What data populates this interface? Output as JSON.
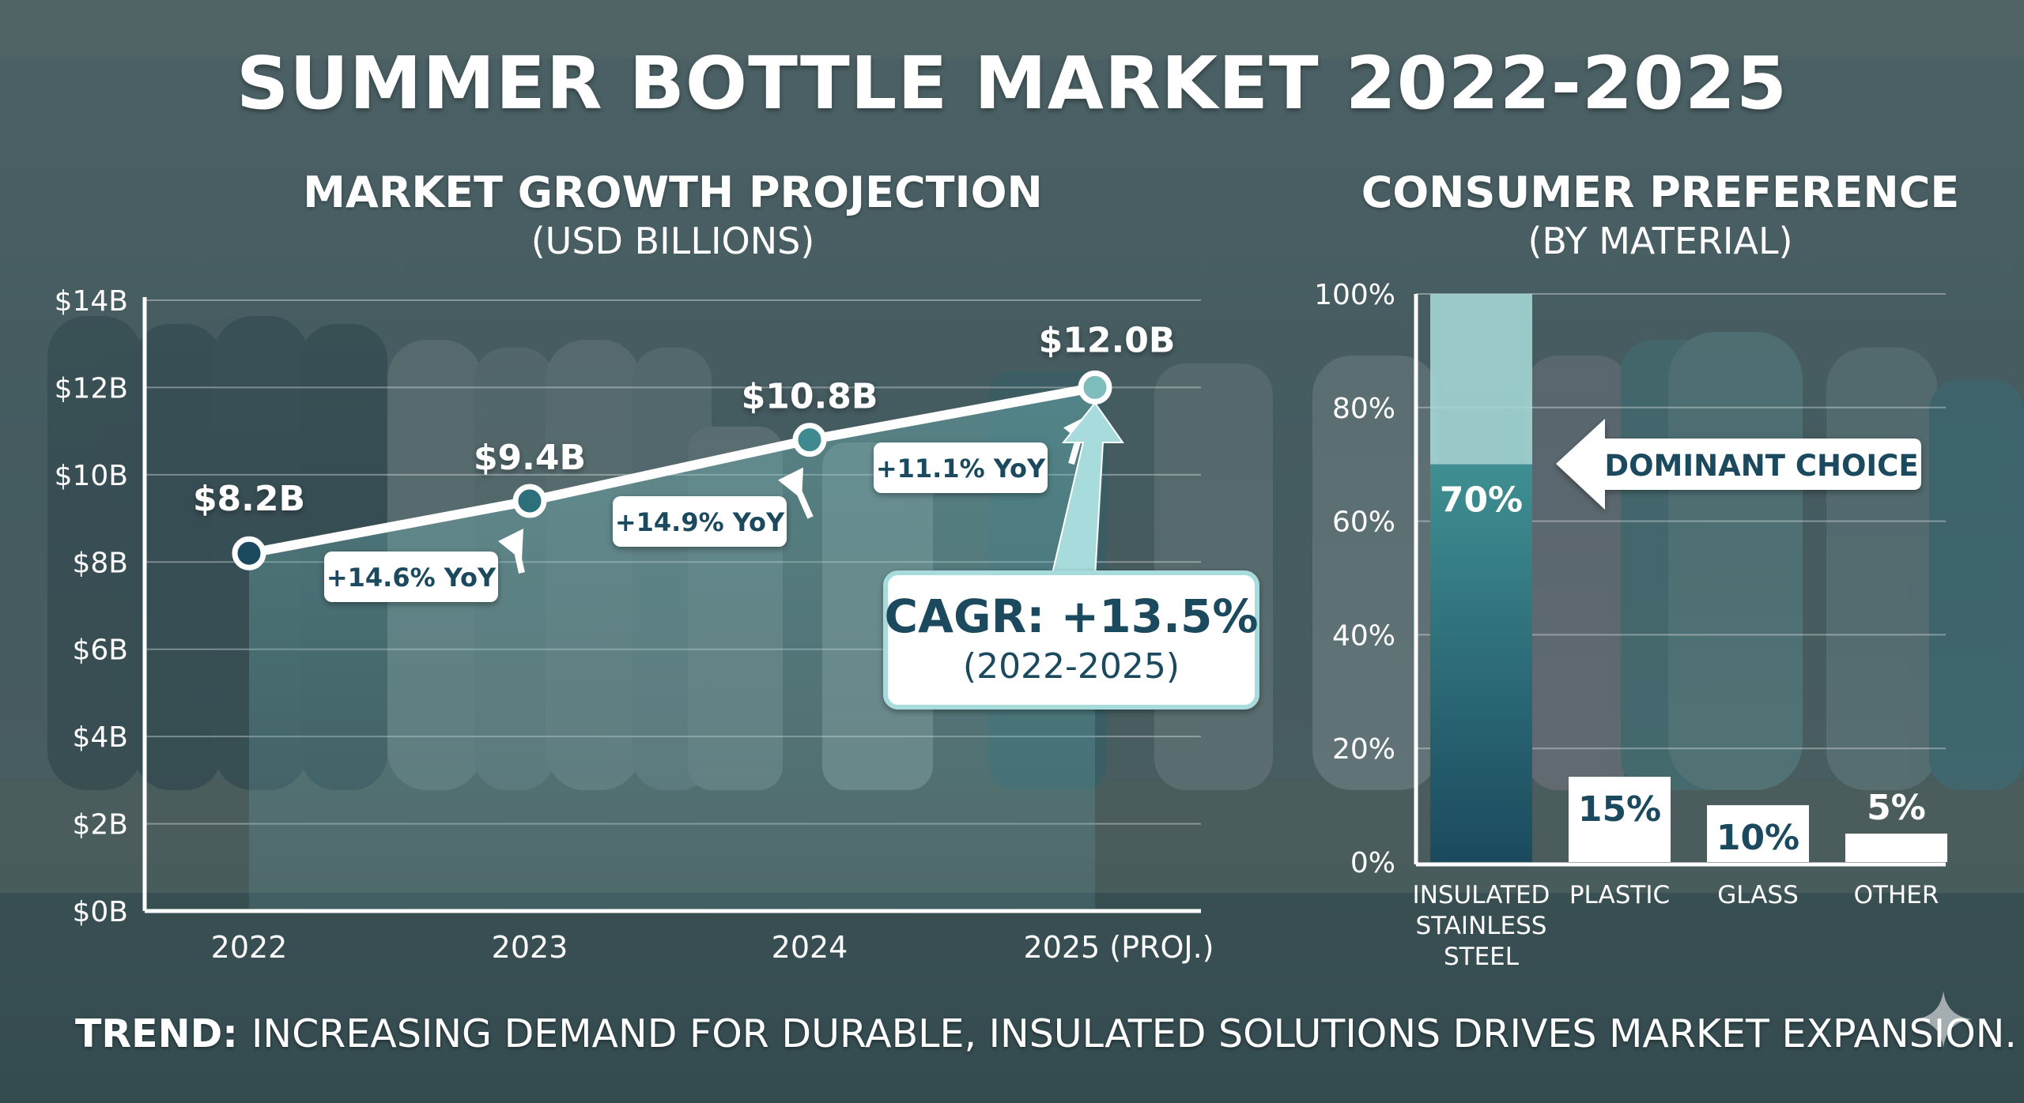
{
  "title": "SUMMER BOTTLE MARKET 2022-2025",
  "colors": {
    "accent_dark": "#1b4a5e",
    "accent_teal": "#3e8a90",
    "accent_light": "#a8dcdc",
    "text": "#ffffff"
  },
  "trend": {
    "label": "TREND:",
    "text": "INCREASING DEMAND FOR DURABLE, INSULATED SOLUTIONS DRIVES MARKET EXPANSION."
  },
  "chart_data": [
    {
      "type": "line",
      "title": "MARKET GROWTH PROJECTION",
      "subtitle": "(USD BILLIONS)",
      "categories": [
        "2022",
        "2023",
        "2024",
        "2025 (PROJ.)"
      ],
      "values": [
        8.2,
        9.4,
        10.8,
        12.0
      ],
      "data_labels": [
        "$8.2B",
        "$9.4B",
        "$10.8B",
        "$12.0B"
      ],
      "yoy_labels": [
        "+14.6% YoY",
        "+14.9% YoY",
        "+11.1% YoY"
      ],
      "yticks": [
        "$0B",
        "$2B",
        "$4B",
        "$6B",
        "$8B",
        "$10B",
        "$12B",
        "$14B"
      ],
      "ylim": [
        0,
        14
      ],
      "grid": true,
      "annotation": {
        "title": "CAGR: +13.5%",
        "subtitle": "(2022-2025)"
      }
    },
    {
      "type": "bar",
      "title": "CONSUMER PREFERENCE",
      "subtitle": "(BY MATERIAL)",
      "categories": [
        "INSULATED STAINLESS STEEL",
        "PLASTIC",
        "GLASS",
        "OTHER"
      ],
      "values": [
        70,
        15,
        10,
        5
      ],
      "data_labels": [
        "70%",
        "15%",
        "10%",
        "5%"
      ],
      "yticks": [
        "0%",
        "20%",
        "40%",
        "60%",
        "80%",
        "100%"
      ],
      "ylim": [
        0,
        100
      ],
      "grid": true,
      "annotation": {
        "title": "DOMINANT CHOICE"
      }
    }
  ]
}
